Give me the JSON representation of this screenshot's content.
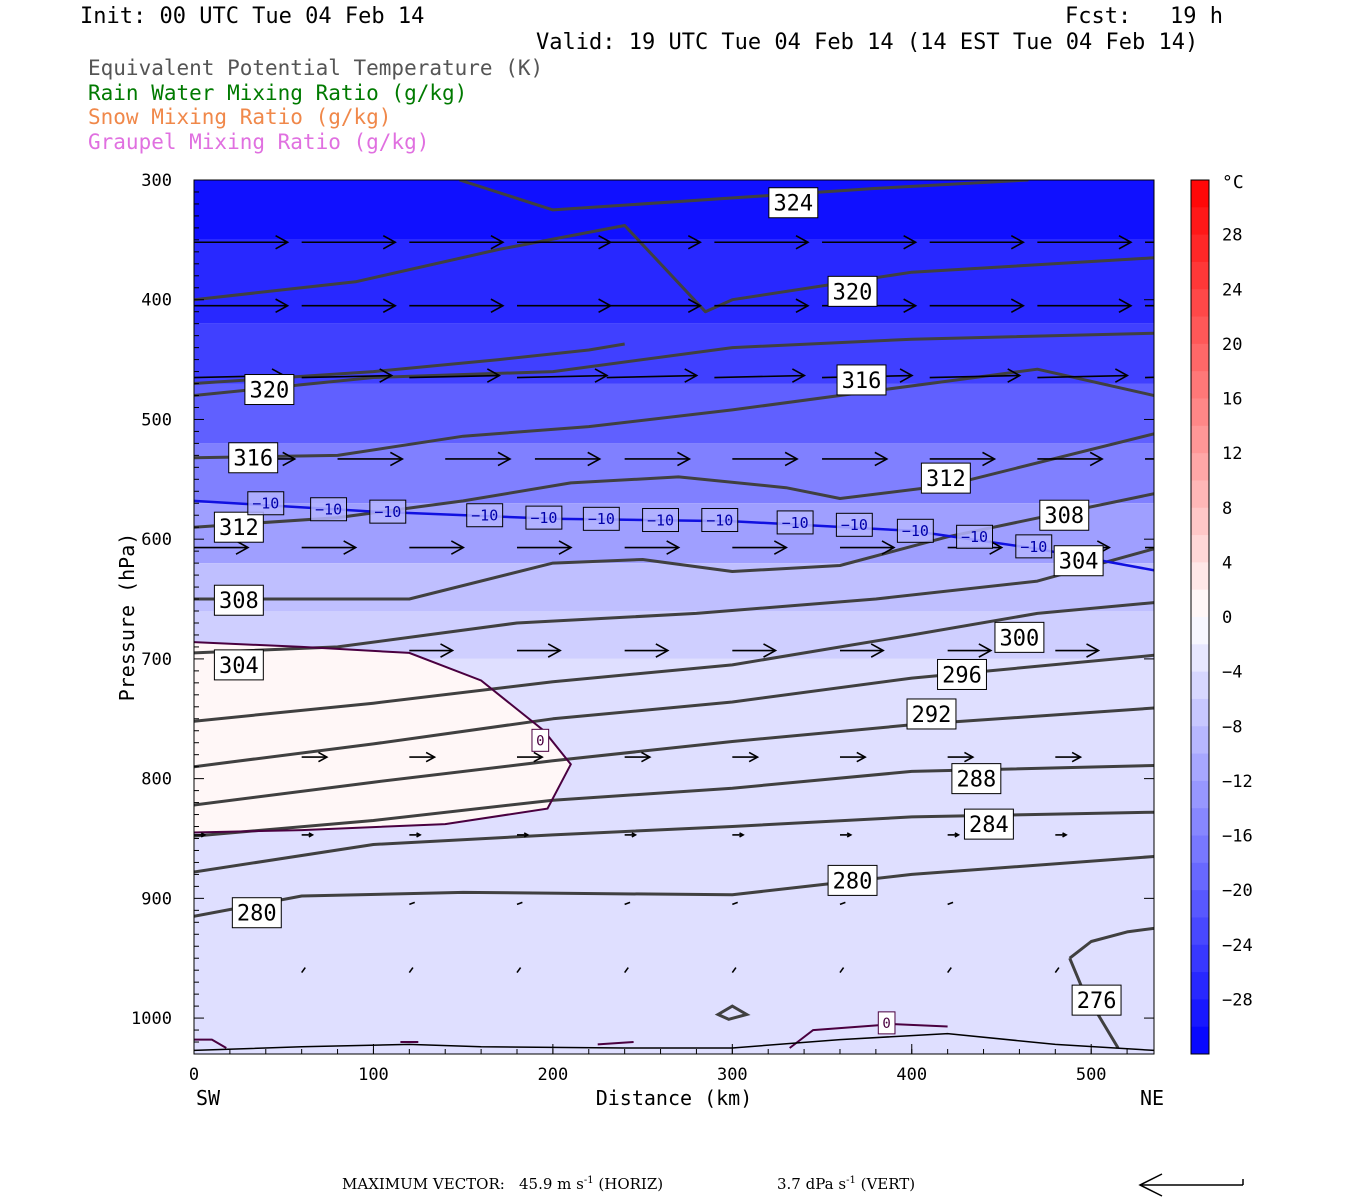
{
  "header": {
    "init": "Init: 00 UTC Tue 04 Feb 14",
    "fcst_label": "Fcst:",
    "fcst_value": "19 h",
    "valid": "Valid: 19 UTC Tue 04 Feb 14 (14 EST Tue 04 Feb 14)"
  },
  "legend": [
    {
      "text": "Equivalent Potential Temperature (K)",
      "color": "#555555"
    },
    {
      "text": "Rain Water Mixing Ratio (g/kg)",
      "color": "#007a00"
    },
    {
      "text": "Snow Mixing Ratio (g/kg)",
      "color": "#f0884a"
    },
    {
      "text": "Graupel Mixing Ratio (g/kg)",
      "color": "#e070e0"
    }
  ],
  "footer": {
    "max_vector_label": "MAXIMUM VECTOR:",
    "horiz": "45.9 m s",
    "horiz_sup": "-1",
    "horiz_tag": "(HORIZ)",
    "vert": "3.7 dPa s",
    "vert_sup": "-1",
    "vert_tag": "(VERT)"
  },
  "chart_data": {
    "type": "cross-section",
    "xlabel": "Distance (km)",
    "ylabel": "Pressure (hPa)",
    "xlim": [
      0,
      535
    ],
    "ylim": [
      300,
      1030
    ],
    "x_ticks": [
      0,
      100,
      200,
      300,
      400,
      500
    ],
    "y_ticks": [
      300,
      400,
      500,
      600,
      700,
      800,
      900,
      1000
    ],
    "x_end_labels": {
      "left": "SW",
      "right": "NE"
    },
    "colorbar": {
      "unit": "°C",
      "range": [
        -32,
        32
      ],
      "tick_labels": [
        "28",
        "24",
        "20",
        "16",
        "12",
        "8",
        "4",
        "0",
        "−4",
        "−8",
        "−12",
        "−16",
        "−20",
        "−24",
        "−28"
      ],
      "tick_values": [
        28,
        24,
        20,
        16,
        12,
        8,
        4,
        0,
        -4,
        -8,
        -12,
        -16,
        -20,
        -24,
        -28
      ],
      "colors": {
        "cold": "#0000ff",
        "zero": "#ffffff",
        "warm": "#ff0000"
      }
    },
    "theta_e_contours": [
      {
        "value": 324,
        "points": [
          [
            148,
            300
          ],
          [
            200,
            325
          ],
          [
            380,
            307
          ],
          [
            465,
            300
          ]
        ]
      },
      {
        "value": 320,
        "points": [
          [
            0,
            400
          ],
          [
            90,
            385
          ],
          [
            170,
            358
          ],
          [
            240,
            338
          ],
          [
            285,
            410
          ],
          [
            300,
            400
          ],
          [
            400,
            377
          ],
          [
            535,
            365
          ]
        ]
      },
      {
        "value": 320,
        "points": [
          [
            0,
            470
          ],
          [
            100,
            460
          ],
          [
            170,
            450
          ],
          [
            220,
            442
          ],
          [
            240,
            437
          ]
        ]
      },
      {
        "value": 316,
        "points": [
          [
            0,
            480
          ],
          [
            100,
            465
          ],
          [
            200,
            460
          ],
          [
            300,
            440
          ],
          [
            400,
            433
          ],
          [
            535,
            428
          ]
        ]
      },
      {
        "value": 316,
        "points": [
          [
            0,
            532
          ],
          [
            80,
            530
          ],
          [
            150,
            514
          ],
          [
            220,
            506
          ],
          [
            300,
            492
          ],
          [
            385,
            475
          ],
          [
            470,
            458
          ],
          [
            535,
            480
          ]
        ]
      },
      {
        "value": 312,
        "points": [
          [
            0,
            590
          ],
          [
            80,
            582
          ],
          [
            150,
            568
          ],
          [
            210,
            553
          ],
          [
            270,
            548
          ],
          [
            330,
            557
          ],
          [
            360,
            566
          ],
          [
            420,
            555
          ],
          [
            535,
            512
          ]
        ]
      },
      {
        "value": 308,
        "points": [
          [
            0,
            650
          ],
          [
            120,
            650
          ],
          [
            200,
            620
          ],
          [
            250,
            617
          ],
          [
            300,
            627
          ],
          [
            360,
            622
          ],
          [
            420,
            598
          ],
          [
            535,
            562
          ]
        ]
      },
      {
        "value": 304,
        "points": [
          [
            0,
            695
          ],
          [
            80,
            690
          ],
          [
            180,
            670
          ],
          [
            280,
            662
          ],
          [
            380,
            650
          ],
          [
            470,
            635
          ],
          [
            535,
            608
          ]
        ]
      },
      {
        "value": 300,
        "points": [
          [
            0,
            752
          ],
          [
            100,
            737
          ],
          [
            200,
            719
          ],
          [
            300,
            705
          ],
          [
            400,
            680
          ],
          [
            470,
            662
          ],
          [
            535,
            653
          ]
        ]
      },
      {
        "value": 296,
        "points": [
          [
            0,
            790
          ],
          [
            100,
            771
          ],
          [
            200,
            750
          ],
          [
            300,
            736
          ],
          [
            400,
            716
          ],
          [
            535,
            697
          ]
        ]
      },
      {
        "value": 292,
        "points": [
          [
            0,
            822
          ],
          [
            100,
            803
          ],
          [
            200,
            785
          ],
          [
            300,
            769
          ],
          [
            400,
            755
          ],
          [
            535,
            741
          ]
        ]
      },
      {
        "value": 288,
        "points": [
          [
            0,
            848
          ],
          [
            100,
            835
          ],
          [
            200,
            818
          ],
          [
            300,
            808
          ],
          [
            400,
            794
          ],
          [
            535,
            789
          ]
        ]
      },
      {
        "value": 284,
        "points": [
          [
            0,
            878
          ],
          [
            100,
            855
          ],
          [
            200,
            847
          ],
          [
            300,
            840
          ],
          [
            400,
            832
          ],
          [
            535,
            828
          ]
        ]
      },
      {
        "value": 280,
        "points": [
          [
            0,
            915
          ],
          [
            60,
            898
          ],
          [
            150,
            895
          ],
          [
            300,
            897
          ],
          [
            400,
            880
          ],
          [
            535,
            865
          ]
        ]
      },
      {
        "value": 276,
        "points": [
          [
            488,
            950
          ],
          [
            500,
            936
          ],
          [
            520,
            928
          ],
          [
            535,
            925
          ]
        ]
      },
      {
        "value": 276,
        "points": [
          [
            488,
            950
          ],
          [
            495,
            975
          ],
          [
            505,
            1000
          ],
          [
            515,
            1025
          ]
        ]
      }
    ],
    "theta_e_labels": [
      {
        "value": "324",
        "x": 334,
        "p": 319
      },
      {
        "value": "320",
        "x": 367,
        "p": 393
      },
      {
        "value": "320",
        "x": 42,
        "p": 475
      },
      {
        "value": "316",
        "x": 372,
        "p": 467
      },
      {
        "value": "316",
        "x": 33,
        "p": 532
      },
      {
        "value": "312",
        "x": 419,
        "p": 549
      },
      {
        "value": "312",
        "x": 25,
        "p": 590
      },
      {
        "value": "308",
        "x": 485,
        "p": 580
      },
      {
        "value": "304",
        "x": 493,
        "p": 618
      },
      {
        "value": "308",
        "x": 25,
        "p": 651
      },
      {
        "value": "300",
        "x": 460,
        "p": 682
      },
      {
        "value": "304",
        "x": 25,
        "p": 705
      },
      {
        "value": "296",
        "x": 428,
        "p": 713
      },
      {
        "value": "292",
        "x": 411,
        "p": 746
      },
      {
        "value": "288",
        "x": 436,
        "p": 800
      },
      {
        "value": "284",
        "x": 443,
        "p": 838
      },
      {
        "value": "280",
        "x": 367,
        "p": 885
      },
      {
        "value": "280",
        "x": 35,
        "p": 912
      },
      {
        "value": "276",
        "x": 503,
        "p": 985
      }
    ],
    "minus10_isotherm": {
      "value": "−10",
      "points": [
        [
          0,
          568
        ],
        [
          100,
          577
        ],
        [
          200,
          583
        ],
        [
          300,
          585
        ],
        [
          400,
          593
        ],
        [
          470,
          608
        ],
        [
          535,
          626
        ]
      ],
      "labels": [
        [
          40,
          570
        ],
        [
          75,
          575
        ],
        [
          108,
          577
        ],
        [
          162,
          580
        ],
        [
          195,
          582
        ],
        [
          227,
          583
        ],
        [
          260,
          584
        ],
        [
          293,
          584
        ],
        [
          335,
          586
        ],
        [
          368,
          588
        ],
        [
          402,
          593
        ],
        [
          435,
          598
        ],
        [
          468,
          606
        ]
      ]
    },
    "zero_isotherm": {
      "value": "0",
      "points": [
        [
          0,
          686
        ],
        [
          60,
          690
        ],
        [
          120,
          695
        ],
        [
          160,
          718
        ],
        [
          195,
          760
        ],
        [
          210,
          788
        ],
        [
          197,
          825
        ],
        [
          140,
          838
        ],
        [
          60,
          843
        ],
        [
          0,
          845
        ]
      ],
      "label_x": 193,
      "label_p": 768
    },
    "surface_zero_segments": [
      {
        "value": "0",
        "label_x": 386,
        "label_p": 1004,
        "points": [
          [
            332,
            1025
          ],
          [
            345,
            1010
          ],
          [
            390,
            1005
          ],
          [
            420,
            1007
          ]
        ]
      },
      {
        "value": "",
        "points": [
          [
            0,
            1018
          ],
          [
            10,
            1018
          ],
          [
            18,
            1025
          ]
        ]
      },
      {
        "value": "",
        "points": [
          [
            115,
            1020
          ],
          [
            125,
            1020
          ]
        ]
      },
      {
        "value": "",
        "points": [
          [
            225,
            1022
          ],
          [
            245,
            1020
          ]
        ]
      }
    ],
    "wind_vector_rows": [
      {
        "p": 352,
        "x": [
          0,
          60,
          120,
          180,
          230,
          290,
          350,
          410,
          470,
          530
        ],
        "len": 52,
        "dp": 0
      },
      {
        "p": 405,
        "x": [
          0,
          60,
          120,
          180,
          230,
          290,
          350,
          410,
          470,
          530
        ],
        "len": 52,
        "dp": 0
      },
      {
        "p": 465,
        "x": [
          0,
          60,
          120,
          180,
          230,
          290,
          350,
          410,
          470,
          530
        ],
        "len": 50,
        "dp": 2
      },
      {
        "p": 533,
        "x": [
          20,
          80,
          140,
          190,
          240,
          300,
          350,
          410,
          470,
          530
        ],
        "len": 36,
        "dp": 0
      },
      {
        "p": 607,
        "x": [
          0,
          60,
          120,
          180,
          240,
          300,
          360,
          420,
          480,
          530
        ],
        "len": 30,
        "dp": 0
      },
      {
        "p": 693,
        "x": [
          120,
          180,
          240,
          300,
          360,
          420,
          480
        ],
        "len": 24,
        "dp": 0
      },
      {
        "p": 782,
        "x": [
          60,
          120,
          180,
          240,
          300,
          360,
          420,
          480
        ],
        "len": 14,
        "dp": 0
      },
      {
        "p": 847,
        "x": [
          0,
          60,
          120,
          180,
          240,
          300,
          360,
          420,
          480
        ],
        "len": 6,
        "dp": 0
      },
      {
        "p": 905,
        "x": [
          120,
          180,
          240,
          300,
          360,
          420
        ],
        "len": 3,
        "dp": 2
      },
      {
        "p": 962,
        "x": [
          60,
          120,
          180,
          240,
          300,
          360,
          420,
          480
        ],
        "len": 2,
        "dp": 5
      }
    ],
    "temperature_field": [
      {
        "t": -30,
        "boundary": [
          [
            0,
            300
          ],
          [
            535,
            300
          ],
          [
            535,
            350
          ],
          [
            0,
            350
          ]
        ]
      },
      {
        "t": -27,
        "boundary": [
          [
            0,
            350
          ],
          [
            535,
            350
          ],
          [
            535,
            420
          ],
          [
            0,
            420
          ]
        ]
      },
      {
        "t": -24,
        "boundary": [
          [
            0,
            420
          ],
          [
            535,
            420
          ],
          [
            535,
            470
          ],
          [
            0,
            470
          ]
        ]
      },
      {
        "t": -20,
        "boundary": [
          [
            0,
            470
          ],
          [
            535,
            470
          ],
          [
            535,
            520
          ],
          [
            0,
            520
          ]
        ]
      },
      {
        "t": -16,
        "boundary": [
          [
            0,
            520
          ],
          [
            535,
            520
          ],
          [
            535,
            570
          ],
          [
            0,
            570
          ]
        ]
      },
      {
        "t": -12,
        "boundary": [
          [
            0,
            570
          ],
          [
            535,
            570
          ],
          [
            535,
            620
          ],
          [
            0,
            620
          ]
        ]
      },
      {
        "t": -8,
        "boundary": [
          [
            0,
            620
          ],
          [
            535,
            620
          ],
          [
            535,
            660
          ],
          [
            0,
            660
          ]
        ]
      },
      {
        "t": -6,
        "boundary": [
          [
            0,
            660
          ],
          [
            535,
            660
          ],
          [
            535,
            700
          ],
          [
            0,
            700
          ]
        ]
      },
      {
        "t": -4,
        "boundary": [
          [
            0,
            700
          ],
          [
            535,
            700
          ],
          [
            535,
            1030
          ],
          [
            0,
            1030
          ]
        ]
      }
    ]
  }
}
